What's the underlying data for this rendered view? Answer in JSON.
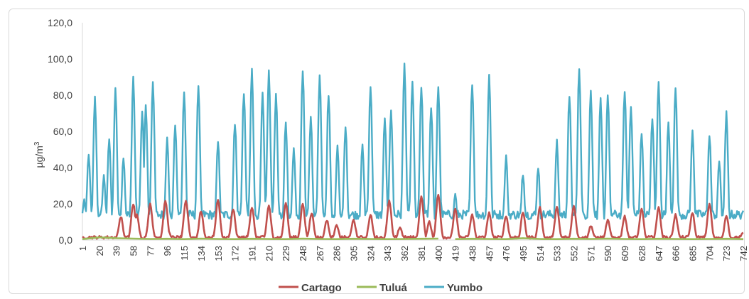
{
  "chart_data": {
    "type": "line",
    "title": "",
    "ylabel_prefix": "µg/m",
    "ylabel_sup": "3",
    "xlabel": "",
    "ylim": [
      0,
      120
    ],
    "yticks": [
      "0,0",
      "20,0",
      "40,0",
      "60,0",
      "80,0",
      "100,0",
      "120,0"
    ],
    "xlim": [
      1,
      742
    ],
    "xticks": [
      1,
      20,
      39,
      58,
      77,
      96,
      115,
      134,
      153,
      172,
      191,
      210,
      229,
      248,
      267,
      286,
      305,
      324,
      343,
      362,
      381,
      400,
      419,
      438,
      457,
      476,
      495,
      514,
      533,
      552,
      571,
      590,
      609,
      628,
      647,
      666,
      685,
      704,
      723,
      742
    ],
    "grid": false,
    "legend_position": "bottom",
    "series": [
      {
        "name": "Cartago",
        "color": "#c0504d",
        "peaks": [
          [
            44,
            13
          ],
          [
            58,
            20
          ],
          [
            62,
            14
          ],
          [
            77,
            20
          ],
          [
            94,
            22
          ],
          [
            97,
            5
          ],
          [
            117,
            22
          ],
          [
            134,
            16
          ],
          [
            153,
            22
          ],
          [
            170,
            17
          ],
          [
            191,
            18
          ],
          [
            210,
            19
          ],
          [
            229,
            20
          ],
          [
            248,
            20
          ],
          [
            258,
            15
          ],
          [
            275,
            11
          ],
          [
            286,
            8
          ],
          [
            305,
            11
          ],
          [
            324,
            14
          ],
          [
            345,
            22
          ],
          [
            357,
            7
          ],
          [
            381,
            24
          ],
          [
            390,
            10
          ],
          [
            400,
            25
          ],
          [
            419,
            17
          ],
          [
            438,
            14
          ],
          [
            457,
            15
          ],
          [
            476,
            13
          ],
          [
            495,
            15
          ],
          [
            514,
            18
          ],
          [
            533,
            18
          ],
          [
            552,
            19
          ],
          [
            571,
            8
          ],
          [
            590,
            11
          ],
          [
            609,
            13
          ],
          [
            628,
            17
          ],
          [
            647,
            18
          ],
          [
            666,
            14
          ],
          [
            685,
            15
          ],
          [
            704,
            20
          ],
          [
            723,
            13
          ],
          [
            742,
            4
          ]
        ],
        "baseline": 1.5
      },
      {
        "name": "Tuluá",
        "color": "#9bbb59",
        "x": [
          1,
          20,
          39,
          58,
          77,
          96,
          115,
          134,
          153,
          172,
          191,
          210,
          229,
          248,
          267,
          286,
          305,
          324,
          343,
          362,
          381,
          400,
          410,
          419,
          438,
          457,
          476,
          495,
          514,
          533,
          552,
          571,
          590,
          609,
          628,
          647,
          666,
          685,
          704,
          723,
          742
        ],
        "values": [
          0.5,
          1.5,
          1.0,
          0.8,
          0.6,
          0.7,
          0.5,
          0.8,
          0.6,
          0.5,
          0.7,
          0.6,
          0.5,
          0.8,
          0.6,
          0.5,
          0.7,
          0.6,
          0.5,
          0.6,
          0.7,
          0.8,
          null,
          0.5,
          0.7,
          0.6,
          0.5,
          1.0,
          0.6,
          0.5,
          0.7,
          0.6,
          0.8,
          0.6,
          0.5,
          0.7,
          0.6,
          0.5,
          0.6,
          0.7,
          0.5
        ]
      },
      {
        "name": "Yumbo",
        "color": "#4bacc6",
        "peaks": [
          [
            3,
            22
          ],
          [
            8,
            48
          ],
          [
            15,
            78
          ],
          [
            25,
            35
          ],
          [
            31,
            56
          ],
          [
            38,
            83
          ],
          [
            47,
            45
          ],
          [
            58,
            90
          ],
          [
            68,
            70
          ],
          [
            72,
            74
          ],
          [
            80,
            88
          ],
          [
            96,
            56
          ],
          [
            105,
            64
          ],
          [
            115,
            82
          ],
          [
            131,
            86
          ],
          [
            153,
            55
          ],
          [
            172,
            65
          ],
          [
            182,
            82
          ],
          [
            191,
            94
          ],
          [
            203,
            81
          ],
          [
            210,
            94
          ],
          [
            218,
            81
          ],
          [
            229,
            65
          ],
          [
            238,
            50
          ],
          [
            248,
            94
          ],
          [
            257,
            67
          ],
          [
            267,
            90
          ],
          [
            277,
            81
          ],
          [
            287,
            51
          ],
          [
            296,
            62
          ],
          [
            315,
            53
          ],
          [
            324,
            85
          ],
          [
            340,
            66
          ],
          [
            347,
            72
          ],
          [
            362,
            96
          ],
          [
            371,
            87
          ],
          [
            381,
            84
          ],
          [
            392,
            74
          ],
          [
            400,
            85
          ],
          [
            419,
            25
          ],
          [
            438,
            87
          ],
          [
            457,
            91
          ],
          [
            476,
            46
          ],
          [
            495,
            37
          ],
          [
            512,
            40
          ],
          [
            533,
            54
          ],
          [
            547,
            80
          ],
          [
            558,
            95
          ],
          [
            571,
            82
          ],
          [
            582,
            77
          ],
          [
            590,
            81
          ],
          [
            609,
            83
          ],
          [
            616,
            73
          ],
          [
            628,
            60
          ],
          [
            640,
            68
          ],
          [
            647,
            87
          ],
          [
            658,
            64
          ],
          [
            666,
            85
          ],
          [
            685,
            60
          ],
          [
            704,
            58
          ],
          [
            715,
            44
          ],
          [
            723,
            70
          ],
          [
            742,
            16
          ]
        ],
        "baseline": 14
      }
    ]
  }
}
